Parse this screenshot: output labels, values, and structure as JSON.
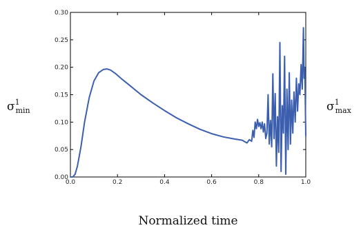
{
  "chart_data": {
    "type": "line",
    "title": "",
    "xlabel": "Normalized time",
    "ylabel_left": "σ¹min",
    "ylabel_left_parts": {
      "base": "σ",
      "sup": "1",
      "sub": "min"
    },
    "ylabel_right": "σ¹max",
    "ylabel_right_parts": {
      "base": "σ",
      "sup": "1",
      "sub": "max"
    },
    "xlim": [
      0.0,
      1.0
    ],
    "ylim": [
      0.0,
      0.3
    ],
    "xticks": [
      0.0,
      0.2,
      0.4,
      0.6,
      0.8,
      1.0
    ],
    "xtick_labels": [
      "0.0",
      "0.2",
      "0.4",
      "0.6",
      "0.8",
      "1.0"
    ],
    "yticks": [
      0.0,
      0.05,
      0.1,
      0.15,
      0.2,
      0.25,
      0.3
    ],
    "ytick_labels": [
      "0.00",
      "0.05",
      "0.10",
      "0.15",
      "0.20",
      "0.25",
      "0.30"
    ],
    "grid": false,
    "legend": "none",
    "series": [
      {
        "color": "#3b5fae",
        "x": [
          0.0,
          0.01,
          0.02,
          0.03,
          0.045,
          0.06,
          0.08,
          0.1,
          0.12,
          0.14,
          0.155,
          0.17,
          0.19,
          0.22,
          0.26,
          0.3,
          0.35,
          0.4,
          0.45,
          0.5,
          0.55,
          0.6,
          0.65,
          0.7,
          0.73,
          0.75,
          0.76,
          0.77,
          0.775,
          0.78,
          0.785,
          0.79,
          0.795,
          0.8,
          0.805,
          0.81,
          0.815,
          0.82,
          0.825,
          0.83,
          0.835,
          0.84,
          0.845,
          0.85,
          0.855,
          0.86,
          0.865,
          0.87,
          0.875,
          0.88,
          0.885,
          0.89,
          0.895,
          0.9,
          0.905,
          0.91,
          0.915,
          0.92,
          0.925,
          0.93,
          0.935,
          0.94,
          0.945,
          0.95,
          0.955,
          0.96,
          0.965,
          0.97,
          0.975,
          0.98,
          0.985,
          0.99,
          0.993,
          0.996,
          1.0
        ],
        "values": [
          0.0,
          0.0,
          0.005,
          0.02,
          0.055,
          0.1,
          0.145,
          0.175,
          0.19,
          0.196,
          0.197,
          0.195,
          0.189,
          0.178,
          0.164,
          0.15,
          0.135,
          0.121,
          0.108,
          0.097,
          0.087,
          0.079,
          0.073,
          0.069,
          0.067,
          0.062,
          0.068,
          0.065,
          0.085,
          0.072,
          0.1,
          0.088,
          0.105,
          0.092,
          0.099,
          0.088,
          0.1,
          0.082,
          0.097,
          0.07,
          0.08,
          0.15,
          0.06,
          0.103,
          0.055,
          0.188,
          0.07,
          0.152,
          0.02,
          0.11,
          0.045,
          0.245,
          0.01,
          0.13,
          0.08,
          0.22,
          0.005,
          0.16,
          0.05,
          0.19,
          0.06,
          0.14,
          0.08,
          0.155,
          0.1,
          0.18,
          0.12,
          0.17,
          0.15,
          0.205,
          0.16,
          0.272,
          0.18,
          0.2,
          0.075
        ]
      }
    ]
  }
}
